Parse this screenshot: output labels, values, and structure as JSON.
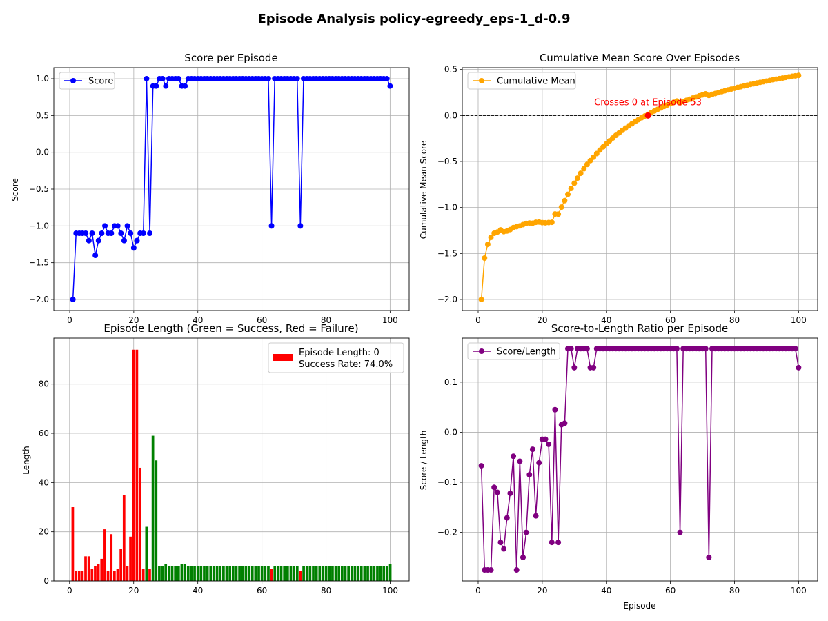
{
  "figure": {
    "title": "Episode Analysis policy-egreedy_eps-1_d-0.9"
  },
  "chart_data": [
    {
      "id": "score",
      "type": "line",
      "title": "Score per Episode",
      "xlabel": "",
      "ylabel": "Score",
      "xlim": [
        -4.95,
        105.95
      ],
      "ylim": [
        -2.15,
        1.15
      ],
      "xticks": [
        0,
        20,
        40,
        60,
        80,
        100
      ],
      "yticks": [
        -2.0,
        -1.5,
        -1.0,
        -0.5,
        0.0,
        0.5,
        1.0
      ],
      "ytick_labels": [
        "−2.0",
        "−1.5",
        "−1.0",
        "−0.5",
        "0.0",
        "0.5",
        "1.0"
      ],
      "grid": true,
      "legend": {
        "placement": "upper-left",
        "entries": [
          "Score"
        ]
      },
      "color": "#0000ff",
      "series": [
        {
          "name": "Score",
          "x": [
            1,
            2,
            3,
            4,
            5,
            6,
            7,
            8,
            9,
            10,
            11,
            12,
            13,
            14,
            15,
            16,
            17,
            18,
            19,
            20,
            21,
            22,
            23,
            24,
            25,
            26,
            27,
            28,
            29,
            30,
            31,
            32,
            33,
            34,
            35,
            36,
            37,
            38,
            39,
            40,
            41,
            42,
            43,
            44,
            45,
            46,
            47,
            48,
            49,
            50,
            51,
            52,
            53,
            54,
            55,
            56,
            57,
            58,
            59,
            60,
            61,
            62,
            63,
            64,
            65,
            66,
            67,
            68,
            69,
            70,
            71,
            72,
            73,
            74,
            75,
            76,
            77,
            78,
            79,
            80,
            81,
            82,
            83,
            84,
            85,
            86,
            87,
            88,
            89,
            90,
            91,
            92,
            93,
            94,
            95,
            96,
            97,
            98,
            99,
            100
          ],
          "values": [
            -2.0,
            -1.1,
            -1.1,
            -1.1,
            -1.1,
            -1.2,
            -1.1,
            -1.4,
            -1.2,
            -1.1,
            -1.0,
            -1.1,
            -1.1,
            -1.0,
            -1.0,
            -1.1,
            -1.2,
            -1.0,
            -1.1,
            -1.3,
            -1.2,
            -1.1,
            -1.1,
            1.0,
            -1.1,
            0.9,
            0.9,
            1.0,
            1.0,
            0.9,
            1.0,
            1.0,
            1.0,
            1.0,
            0.9,
            0.9,
            1.0,
            1.0,
            1.0,
            1.0,
            1.0,
            1.0,
            1.0,
            1.0,
            1.0,
            1.0,
            1.0,
            1.0,
            1.0,
            1.0,
            1.0,
            1.0,
            1.0,
            1.0,
            1.0,
            1.0,
            1.0,
            1.0,
            1.0,
            1.0,
            1.0,
            1.0,
            -1.0,
            1.0,
            1.0,
            1.0,
            1.0,
            1.0,
            1.0,
            1.0,
            1.0,
            -1.0,
            1.0,
            1.0,
            1.0,
            1.0,
            1.0,
            1.0,
            1.0,
            1.0,
            1.0,
            1.0,
            1.0,
            1.0,
            1.0,
            1.0,
            1.0,
            1.0,
            1.0,
            1.0,
            1.0,
            1.0,
            1.0,
            1.0,
            1.0,
            1.0,
            1.0,
            1.0,
            1.0,
            0.9
          ]
        }
      ]
    },
    {
      "id": "cummean",
      "type": "line",
      "title": "Cumulative Mean Score Over Episodes",
      "xlabel": "",
      "ylabel": "Cumulative Mean Score",
      "xlim": [
        -4.95,
        105.95
      ],
      "ylim": [
        -2.12,
        0.52
      ],
      "xticks": [
        0,
        20,
        40,
        60,
        80,
        100
      ],
      "yticks": [
        -2.0,
        -1.5,
        -1.0,
        -0.5,
        0.0,
        0.5
      ],
      "ytick_labels": [
        "−2.0",
        "−1.5",
        "−1.0",
        "−0.5",
        "0.0",
        "0.5"
      ],
      "grid": true,
      "legend": {
        "placement": "upper-left",
        "entries": [
          "Cumulative Mean"
        ]
      },
      "color": "#ffa500",
      "hline": {
        "y": 0.0,
        "style": "dashed",
        "color": "#000000"
      },
      "marker_point": {
        "x": 53,
        "y": 0.0,
        "color": "#ff0000"
      },
      "annotation": {
        "text": "Crosses 0 at Episode 53",
        "x": 53,
        "y": 0.12,
        "color": "#ff0000"
      },
      "series": [
        {
          "name": "Cumulative Mean",
          "x": [
            1,
            2,
            3,
            4,
            5,
            6,
            7,
            8,
            9,
            10,
            11,
            12,
            13,
            14,
            15,
            16,
            17,
            18,
            19,
            20,
            21,
            22,
            23,
            24,
            25,
            26,
            27,
            28,
            29,
            30,
            31,
            32,
            33,
            34,
            35,
            36,
            37,
            38,
            39,
            40,
            41,
            42,
            43,
            44,
            45,
            46,
            47,
            48,
            49,
            50,
            51,
            52,
            53,
            54,
            55,
            56,
            57,
            58,
            59,
            60,
            61,
            62,
            63,
            64,
            65,
            66,
            67,
            68,
            69,
            70,
            71,
            72,
            73,
            74,
            75,
            76,
            77,
            78,
            79,
            80,
            81,
            82,
            83,
            84,
            85,
            86,
            87,
            88,
            89,
            90,
            91,
            92,
            93,
            94,
            95,
            96,
            97,
            98,
            99,
            100
          ],
          "values": [
            -2.0,
            -1.55,
            -1.4,
            -1.325,
            -1.28,
            -1.267,
            -1.243,
            -1.263,
            -1.256,
            -1.24,
            -1.218,
            -1.208,
            -1.2,
            -1.186,
            -1.173,
            -1.169,
            -1.171,
            -1.161,
            -1.158,
            -1.165,
            -1.167,
            -1.164,
            -1.161,
            -1.071,
            -1.072,
            -0.996,
            -0.926,
            -0.857,
            -0.793,
            -0.737,
            -0.681,
            -0.628,
            -0.579,
            -0.532,
            -0.491,
            -0.453,
            -0.414,
            -0.376,
            -0.341,
            -0.308,
            -0.276,
            -0.245,
            -0.216,
            -0.189,
            -0.162,
            -0.137,
            -0.112,
            -0.09,
            -0.067,
            -0.046,
            -0.025,
            -0.006,
            0.012,
            0.031,
            0.049,
            0.066,
            0.082,
            0.098,
            0.114,
            0.128,
            0.143,
            0.157,
            0.138,
            0.152,
            0.165,
            0.177,
            0.19,
            0.202,
            0.213,
            0.224,
            0.235,
            0.218,
            0.229,
            0.239,
            0.249,
            0.259,
            0.269,
            0.278,
            0.287,
            0.296,
            0.305,
            0.313,
            0.322,
            0.33,
            0.338,
            0.345,
            0.353,
            0.36,
            0.367,
            0.374,
            0.381,
            0.388,
            0.395,
            0.401,
            0.407,
            0.414,
            0.42,
            0.426,
            0.431,
            0.436
          ]
        }
      ]
    },
    {
      "id": "length",
      "type": "bar",
      "title": "Episode Length (Green = Success, Red = Failure)",
      "xlabel": "",
      "ylabel": "Length",
      "xlim": [
        -4.9,
        105.9
      ],
      "ylim": [
        0,
        98.7
      ],
      "xticks": [
        0,
        20,
        40,
        60,
        80,
        100
      ],
      "yticks": [
        0,
        20,
        40,
        60,
        80
      ],
      "grid": true,
      "legend": {
        "placement": "upper-right",
        "entries": [
          "Episode Length: 0",
          "Success Rate: 74.0%"
        ]
      },
      "colors": {
        "success": "#008000",
        "failure": "#ff0000"
      },
      "x": [
        1,
        2,
        3,
        4,
        5,
        6,
        7,
        8,
        9,
        10,
        11,
        12,
        13,
        14,
        15,
        16,
        17,
        18,
        19,
        20,
        21,
        22,
        23,
        24,
        25,
        26,
        27,
        28,
        29,
        30,
        31,
        32,
        33,
        34,
        35,
        36,
        37,
        38,
        39,
        40,
        41,
        42,
        43,
        44,
        45,
        46,
        47,
        48,
        49,
        50,
        51,
        52,
        53,
        54,
        55,
        56,
        57,
        58,
        59,
        60,
        61,
        62,
        63,
        64,
        65,
        66,
        67,
        68,
        69,
        70,
        71,
        72,
        73,
        74,
        75,
        76,
        77,
        78,
        79,
        80,
        81,
        82,
        83,
        84,
        85,
        86,
        87,
        88,
        89,
        90,
        91,
        92,
        93,
        94,
        95,
        96,
        97,
        98,
        99,
        100
      ],
      "values": [
        30,
        4,
        4,
        4,
        10,
        10,
        5,
        6,
        7,
        9,
        21,
        4,
        19,
        4,
        5,
        13,
        35,
        6,
        18,
        94,
        94,
        46,
        5,
        22,
        5,
        59,
        49,
        6,
        6,
        7,
        6,
        6,
        6,
        6,
        7,
        7,
        6,
        6,
        6,
        6,
        6,
        6,
        6,
        6,
        6,
        6,
        6,
        6,
        6,
        6,
        6,
        6,
        6,
        6,
        6,
        6,
        6,
        6,
        6,
        6,
        6,
        6,
        5,
        6,
        6,
        6,
        6,
        6,
        6,
        6,
        6,
        4,
        6,
        6,
        6,
        6,
        6,
        6,
        6,
        6,
        6,
        6,
        6,
        6,
        6,
        6,
        6,
        6,
        6,
        6,
        6,
        6,
        6,
        6,
        6,
        6,
        6,
        6,
        6,
        7
      ],
      "success": [
        0,
        0,
        0,
        0,
        0,
        0,
        0,
        0,
        0,
        0,
        0,
        0,
        0,
        0,
        0,
        0,
        0,
        0,
        0,
        0,
        0,
        0,
        0,
        1,
        0,
        1,
        1,
        1,
        1,
        1,
        1,
        1,
        1,
        1,
        1,
        1,
        1,
        1,
        1,
        1,
        1,
        1,
        1,
        1,
        1,
        1,
        1,
        1,
        1,
        1,
        1,
        1,
        1,
        1,
        1,
        1,
        1,
        1,
        1,
        1,
        1,
        1,
        0,
        1,
        1,
        1,
        1,
        1,
        1,
        1,
        1,
        0,
        1,
        1,
        1,
        1,
        1,
        1,
        1,
        1,
        1,
        1,
        1,
        1,
        1,
        1,
        1,
        1,
        1,
        1,
        1,
        1,
        1,
        1,
        1,
        1,
        1,
        1,
        1,
        1
      ]
    },
    {
      "id": "ratio",
      "type": "line",
      "title": "Score-to-Length Ratio per Episode",
      "xlabel": "Episode",
      "ylabel": "Score / Length",
      "xlim": [
        -4.95,
        105.95
      ],
      "ylim": [
        -0.297,
        0.188
      ],
      "xticks": [
        0,
        20,
        40,
        60,
        80,
        100
      ],
      "yticks": [
        -0.2,
        -0.1,
        0.0,
        0.1
      ],
      "ytick_labels": [
        "−0.2",
        "−0.1",
        "0.0",
        "0.1"
      ],
      "grid": true,
      "legend": {
        "placement": "upper-left",
        "entries": [
          "Score/Length"
        ]
      },
      "color": "#800080",
      "series": [
        {
          "name": "Score/Length",
          "x": [
            1,
            2,
            3,
            4,
            5,
            6,
            7,
            8,
            9,
            10,
            11,
            12,
            13,
            14,
            15,
            16,
            17,
            18,
            19,
            20,
            21,
            22,
            23,
            24,
            25,
            26,
            27,
            28,
            29,
            30,
            31,
            32,
            33,
            34,
            35,
            36,
            37,
            38,
            39,
            40,
            41,
            42,
            43,
            44,
            45,
            46,
            47,
            48,
            49,
            50,
            51,
            52,
            53,
            54,
            55,
            56,
            57,
            58,
            59,
            60,
            61,
            62,
            63,
            64,
            65,
            66,
            67,
            68,
            69,
            70,
            71,
            72,
            73,
            74,
            75,
            76,
            77,
            78,
            79,
            80,
            81,
            82,
            83,
            84,
            85,
            86,
            87,
            88,
            89,
            90,
            91,
            92,
            93,
            94,
            95,
            96,
            97,
            98,
            99,
            100
          ],
          "values": [
            -0.067,
            -0.275,
            -0.275,
            -0.275,
            -0.11,
            -0.12,
            -0.22,
            -0.233,
            -0.171,
            -0.122,
            -0.048,
            -0.275,
            -0.058,
            -0.25,
            -0.2,
            -0.085,
            -0.034,
            -0.167,
            -0.061,
            -0.014,
            -0.014,
            -0.024,
            -0.22,
            0.045,
            -0.22,
            0.015,
            0.018,
            0.167,
            0.167,
            0.129,
            0.167,
            0.167,
            0.167,
            0.167,
            0.129,
            0.129,
            0.167,
            0.167,
            0.167,
            0.167,
            0.167,
            0.167,
            0.167,
            0.167,
            0.167,
            0.167,
            0.167,
            0.167,
            0.167,
            0.167,
            0.167,
            0.167,
            0.167,
            0.167,
            0.167,
            0.167,
            0.167,
            0.167,
            0.167,
            0.167,
            0.167,
            0.167,
            -0.2,
            0.167,
            0.167,
            0.167,
            0.167,
            0.167,
            0.167,
            0.167,
            0.167,
            -0.25,
            0.167,
            0.167,
            0.167,
            0.167,
            0.167,
            0.167,
            0.167,
            0.167,
            0.167,
            0.167,
            0.167,
            0.167,
            0.167,
            0.167,
            0.167,
            0.167,
            0.167,
            0.167,
            0.167,
            0.167,
            0.167,
            0.167,
            0.167,
            0.167,
            0.167,
            0.167,
            0.167,
            0.129
          ]
        }
      ]
    }
  ]
}
